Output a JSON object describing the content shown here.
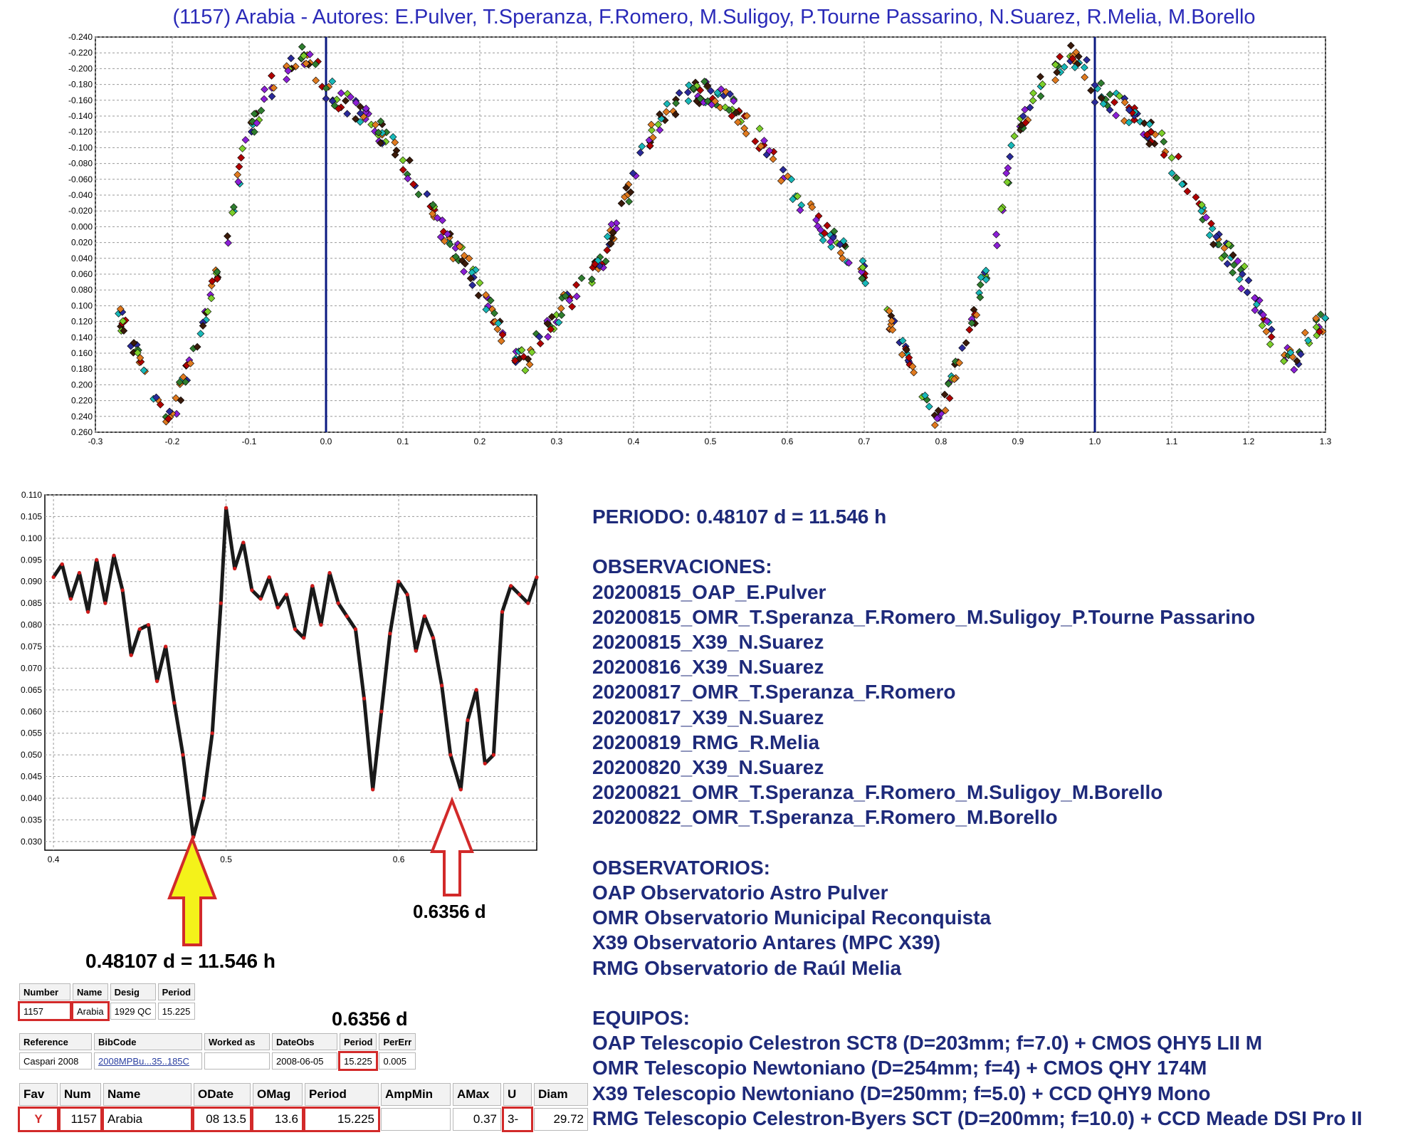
{
  "title": "(1157) Arabia - Autores: E.Pulver, T.Speranza, F.Romero, M.Suligoy, P.Tourne Passarino, N.Suarez, R.Melia, M.Borello",
  "chart_data": [
    {
      "type": "scatter",
      "title": "(1157) Arabia - Autores: E.Pulver, T.Speranza, F.Romero, M.Suligoy, P.Tourne Passarino, N.Suarez, R.Melia, M.Borello",
      "xlabel": "",
      "ylabel": "",
      "xlim": [
        -0.3,
        1.3
      ],
      "ylim": [
        0.26,
        -0.24
      ],
      "y_inverted": true,
      "grid": true,
      "x_ticks": [
        "-0.3",
        "-0.2",
        "-0.1",
        "0.0",
        "0.1",
        "0.2",
        "0.3",
        "0.4",
        "0.5",
        "0.6",
        "0.7",
        "0.8",
        "0.9",
        "1.0",
        "1.1",
        "1.2",
        "1.3"
      ],
      "y_ticks": [
        "-0.240",
        "-0.220",
        "-0.200",
        "-0.180",
        "-0.160",
        "-0.140",
        "-0.120",
        "-0.100",
        "-0.080",
        "-0.060",
        "-0.040",
        "-0.020",
        "0.000",
        "0.020",
        "0.040",
        "0.060",
        "0.080",
        "0.100",
        "0.120",
        "0.140",
        "0.160",
        "0.180",
        "0.200",
        "0.220",
        "0.240",
        "0.260"
      ],
      "vertical_lines": [
        0.0,
        1.0
      ],
      "point_colors": [
        "#8b1fd6",
        "#e07a1f",
        "#2e7d2e",
        "#18b8b8",
        "#7ccf2a",
        "#2a2a9a",
        "#b00000",
        "#3a1a0a"
      ],
      "curve": {
        "x": [
          -0.27,
          -0.25,
          -0.23,
          -0.21,
          -0.2,
          -0.19,
          -0.17,
          -0.15,
          -0.13,
          -0.11,
          -0.09,
          -0.07,
          -0.05,
          -0.03,
          -0.01,
          0.0,
          0.02,
          0.04,
          0.06,
          0.08,
          0.1,
          0.12,
          0.14,
          0.16,
          0.18,
          0.2,
          0.22,
          0.24,
          0.26,
          0.28,
          0.3,
          0.32,
          0.34,
          0.36,
          0.38,
          0.4,
          0.42,
          0.44,
          0.46,
          0.48,
          0.5,
          0.52,
          0.54,
          0.56,
          0.58,
          0.6,
          0.62,
          0.64,
          0.66,
          0.68,
          0.7,
          0.71
        ],
        "y": [
          0.11,
          0.15,
          0.2,
          0.235,
          0.245,
          0.21,
          0.16,
          0.09,
          0.02,
          -0.08,
          -0.14,
          -0.18,
          -0.2,
          -0.215,
          -0.195,
          -0.175,
          -0.16,
          -0.145,
          -0.13,
          -0.11,
          -0.085,
          -0.05,
          -0.015,
          0.02,
          0.045,
          0.075,
          0.12,
          0.16,
          0.17,
          0.14,
          0.11,
          0.09,
          0.07,
          0.04,
          -0.01,
          -0.06,
          -0.11,
          -0.14,
          -0.16,
          -0.17,
          -0.17,
          -0.16,
          -0.14,
          -0.115,
          -0.09,
          -0.06,
          -0.03,
          -0.005,
          0.02,
          0.035,
          0.06,
          0.07
        ]
      }
    },
    {
      "type": "line",
      "title": "",
      "xlabel": "",
      "ylabel": "",
      "xlim": [
        0.395,
        0.68
      ],
      "ylim": [
        0.028,
        0.11
      ],
      "grid": true,
      "x_ticks": [
        "0.4",
        "0.5",
        "0.6"
      ],
      "y_ticks": [
        "0.110",
        "0.105",
        "0.100",
        "0.095",
        "0.090",
        "0.085",
        "0.080",
        "0.075",
        "0.070",
        "0.065",
        "0.060",
        "0.055",
        "0.050",
        "0.045",
        "0.040",
        "0.035",
        "0.030"
      ],
      "series": [
        {
          "x": [
            0.4,
            0.405,
            0.41,
            0.415,
            0.42,
            0.425,
            0.43,
            0.435,
            0.44,
            0.445,
            0.45,
            0.455,
            0.46,
            0.465,
            0.47,
            0.475,
            0.481,
            0.487,
            0.492,
            0.497,
            0.5,
            0.505,
            0.51,
            0.515,
            0.52,
            0.525,
            0.53,
            0.535,
            0.54,
            0.545,
            0.55,
            0.555,
            0.56,
            0.565,
            0.57,
            0.575,
            0.58,
            0.585,
            0.59,
            0.595,
            0.6,
            0.605,
            0.61,
            0.615,
            0.62,
            0.625,
            0.63,
            0.636,
            0.64,
            0.645,
            0.65,
            0.655,
            0.66,
            0.665,
            0.67,
            0.675,
            0.68
          ],
          "y": [
            0.091,
            0.094,
            0.086,
            0.092,
            0.083,
            0.095,
            0.085,
            0.096,
            0.088,
            0.073,
            0.079,
            0.08,
            0.067,
            0.075,
            0.062,
            0.05,
            0.031,
            0.04,
            0.055,
            0.085,
            0.107,
            0.093,
            0.099,
            0.088,
            0.086,
            0.091,
            0.084,
            0.087,
            0.079,
            0.077,
            0.089,
            0.08,
            0.092,
            0.085,
            0.082,
            0.079,
            0.063,
            0.042,
            0.06,
            0.078,
            0.09,
            0.087,
            0.074,
            0.082,
            0.077,
            0.066,
            0.05,
            0.042,
            0.058,
            0.065,
            0.048,
            0.05,
            0.083,
            0.089,
            0.087,
            0.085,
            0.091
          ]
        }
      ]
    }
  ],
  "annotations": {
    "period_arrow_label": "0.48107 d = 11.546 h",
    "alias_arrow_label": "0.6356 d",
    "table_label": "0.6356 d"
  },
  "notes": {
    "periodo": "PERIODO: 0.48107 d = 11.546 h",
    "obs_title": "OBSERVACIONES:",
    "observaciones": [
      "20200815_OAP_E.Pulver",
      "20200815_OMR_T.Speranza_F.Romero_M.Suligoy_P.Tourne Passarino",
      "20200815_X39_N.Suarez",
      "20200816_X39_N.Suarez",
      "20200817_OMR_T.Speranza_F.Romero",
      "20200817_X39_N.Suarez",
      "20200819_RMG_R.Melia",
      "20200820_X39_N.Suarez",
      "20200821_OMR_T.Speranza_F.Romero_M.Suligoy_M.Borello",
      "20200822_OMR_T.Speranza_F.Romero_M.Borello"
    ],
    "obsv_title": "OBSERVATORIOS:",
    "observatorios": [
      "OAP Observatorio Astro Pulver",
      "OMR Observatorio Municipal Reconquista",
      "X39 Observatorio Antares (MPC X39)",
      "RMG Observatorio de Raúl Melia"
    ],
    "eq_title": "EQUIPOS:",
    "equipos": [
      "OAP Telescopio Celestron SCT8 (D=203mm; f=7.0) + CMOS QHY5 LII M",
      "OMR Telescopio Newtoniano (D=254mm; f=4) + CMOS QHY 174M",
      "X39 Telescopio Newtoniano (D=250mm; f=5.0) + CCD QHY9 Mono",
      "RMG Telescopio Celestron-Byers SCT (D=200mm; f=10.0) + CCD Meade DSI Pro II"
    ]
  },
  "table1": {
    "headers": [
      "Number",
      "Name",
      "Desig",
      "Period"
    ],
    "row": [
      "1157",
      "Arabia",
      "1929 QC",
      "15.225"
    ]
  },
  "table2": {
    "headers": [
      "Reference",
      "BibCode",
      "Worked as",
      "DateObs",
      "Period",
      "PerErr"
    ],
    "row": [
      "Caspari 2008",
      "2008MPBu...35..185C",
      "",
      "2008-06-05",
      "15.225",
      "0.005"
    ]
  },
  "table3": {
    "headers": [
      "Fav",
      "Num",
      "Name",
      "ODate",
      "OMag",
      "Period",
      "AmpMin",
      "AMax",
      "U",
      "Diam"
    ],
    "row": [
      "Y",
      "1157",
      "Arabia",
      "08 13.5",
      "13.6",
      "15.225",
      "",
      "0.37",
      "3-",
      "29.72"
    ]
  }
}
